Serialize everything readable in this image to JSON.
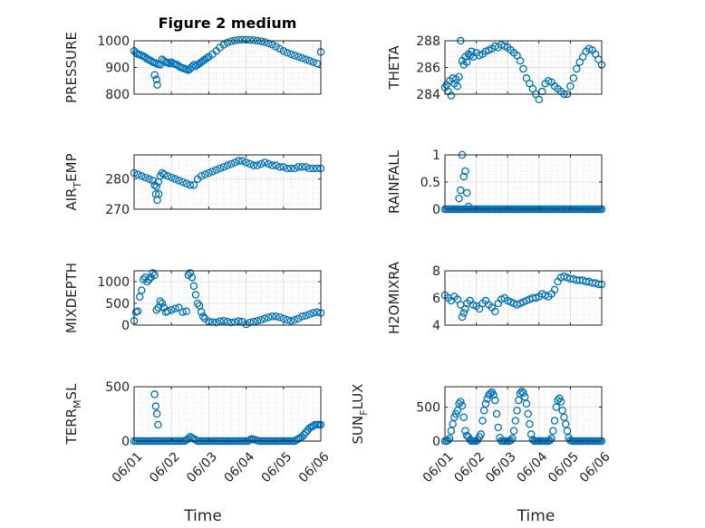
{
  "chart_data": [
    {
      "type": "scatter",
      "title": "Figure 2 medium",
      "ylabel": "PRESSURE",
      "xlabel": "",
      "ylim": [
        800,
        1000
      ],
      "yticks": [
        800,
        900,
        1000
      ],
      "xlim": [
        0,
        5
      ],
      "xticks": [
        0,
        1,
        2,
        3,
        4,
        5
      ],
      "xticklabels": [
        "06/01",
        "06/02",
        "06/03",
        "06/04",
        "06/05",
        "06/06"
      ],
      "show_xticklabels": false,
      "x": [
        0.0,
        0.05,
        0.1,
        0.15,
        0.2,
        0.25,
        0.3,
        0.35,
        0.4,
        0.45,
        0.5,
        0.55,
        0.6,
        0.65,
        0.7,
        0.75,
        0.8,
        0.85,
        0.9,
        0.95,
        1.0,
        1.05,
        1.1,
        1.15,
        1.2,
        1.25,
        1.3,
        1.35,
        1.4,
        1.45,
        1.5,
        1.55,
        1.6,
        1.65,
        1.7,
        1.75,
        1.8,
        1.85,
        1.9,
        1.95,
        2.0,
        2.1,
        2.2,
        2.3,
        2.4,
        2.5,
        2.6,
        2.7,
        2.8,
        2.9,
        3.0,
        3.1,
        3.2,
        3.3,
        3.4,
        3.5,
        3.6,
        3.7,
        3.8,
        3.9,
        4.0,
        4.1,
        4.2,
        4.3,
        4.4,
        4.5,
        4.6,
        4.7,
        4.8,
        4.9,
        5.0,
        0.55,
        0.6,
        0.62
      ],
      "y": [
        962,
        955,
        950,
        948,
        945,
        942,
        938,
        932,
        928,
        925,
        920,
        918,
        915,
        912,
        910,
        930,
        925,
        920,
        918,
        915,
        920,
        915,
        912,
        910,
        905,
        900,
        898,
        895,
        893,
        890,
        895,
        902,
        910,
        905,
        910,
        915,
        920,
        925,
        930,
        935,
        940,
        950,
        962,
        975,
        985,
        993,
        998,
        1001,
        1003,
        1004,
        1004,
        1003,
        1002,
        1000,
        998,
        995,
        990,
        985,
        978,
        970,
        962,
        955,
        950,
        945,
        940,
        935,
        930,
        925,
        920,
        915,
        958,
        872,
        855,
        835
      ]
    },
    {
      "type": "scatter",
      "ylabel": "THETA",
      "ylim": [
        284,
        288
      ],
      "yticks": [
        284,
        286,
        288
      ],
      "xlim": [
        0,
        5
      ],
      "show_xticklabels": false,
      "x": [
        0.0,
        0.05,
        0.1,
        0.15,
        0.2,
        0.25,
        0.3,
        0.35,
        0.4,
        0.45,
        0.5,
        0.55,
        0.6,
        0.65,
        0.7,
        0.75,
        0.8,
        0.85,
        0.9,
        1.0,
        1.1,
        1.2,
        1.3,
        1.4,
        1.5,
        1.6,
        1.7,
        1.8,
        1.9,
        2.0,
        2.1,
        2.2,
        2.3,
        2.4,
        2.5,
        2.6,
        2.7,
        2.8,
        2.9,
        3.0,
        3.1,
        3.2,
        3.3,
        3.4,
        3.5,
        3.6,
        3.7,
        3.8,
        3.9,
        4.0,
        4.1,
        4.2,
        4.3,
        4.4,
        4.5,
        4.6,
        4.7,
        4.8,
        4.9,
        5.0
      ],
      "y": [
        284.5,
        284.7,
        284.2,
        285.0,
        283.9,
        285.2,
        284.8,
        285.1,
        284.6,
        285.3,
        288.0,
        286.5,
        286.2,
        286.8,
        286.4,
        287.0,
        286.9,
        287.2,
        286.8,
        287.1,
        286.9,
        287.0,
        287.2,
        287.3,
        287.4,
        287.6,
        287.5,
        287.7,
        287.6,
        287.5,
        287.3,
        287.1,
        286.9,
        286.5,
        285.9,
        285.2,
        284.8,
        284.4,
        284.0,
        283.6,
        284.2,
        284.8,
        285.0,
        284.9,
        284.6,
        284.4,
        284.2,
        284.0,
        284.0,
        284.6,
        285.2,
        285.9,
        286.4,
        286.8,
        287.2,
        287.4,
        287.3,
        287.0,
        286.6,
        286.2
      ]
    },
    {
      "type": "scatter",
      "ylabel": "AIR_TEMP",
      "ylabel_main": "AIR",
      "ylabel_sub": "T",
      "ylabel_rest": "EMP",
      "ylim": [
        270,
        288
      ],
      "yticks": [
        270,
        280
      ],
      "xlim": [
        0,
        5
      ],
      "show_xticklabels": false,
      "x": [
        0.0,
        0.1,
        0.2,
        0.3,
        0.4,
        0.5,
        0.55,
        0.6,
        0.65,
        0.7,
        0.75,
        0.8,
        0.9,
        1.0,
        1.1,
        1.2,
        1.3,
        1.4,
        1.5,
        1.6,
        1.7,
        1.8,
        1.9,
        2.0,
        2.1,
        2.2,
        2.3,
        2.4,
        2.5,
        2.6,
        2.7,
        2.8,
        2.9,
        3.0,
        3.1,
        3.2,
        3.3,
        3.4,
        3.5,
        3.6,
        3.7,
        3.8,
        3.9,
        4.0,
        4.1,
        4.2,
        4.3,
        4.4,
        4.5,
        4.6,
        4.7,
        4.8,
        4.9,
        5.0,
        0.58,
        0.62,
        0.66
      ],
      "y": [
        282,
        281.5,
        281,
        280.5,
        280,
        279.5,
        278,
        277.5,
        279,
        281,
        282,
        281.5,
        281,
        280.5,
        280,
        279.5,
        279,
        278.5,
        278,
        278,
        280,
        281,
        281.5,
        282,
        282.5,
        283,
        283.5,
        284,
        284.5,
        285,
        285.5,
        286,
        286,
        285.5,
        285,
        284.5,
        284.5,
        285,
        285.5,
        285,
        284.5,
        284.5,
        284,
        284,
        283.5,
        283.5,
        283.5,
        284,
        284,
        284,
        283.5,
        283.5,
        283.5,
        283.5,
        275,
        273,
        275
      ]
    },
    {
      "type": "scatter",
      "ylabel": "RAINFALL",
      "ylim": [
        0,
        1
      ],
      "yticks": [
        0,
        0.5,
        1
      ],
      "xlim": [
        0,
        5
      ],
      "show_xticklabels": false,
      "x": [
        0.0,
        0.05,
        0.1,
        0.15,
        0.2,
        0.25,
        0.3,
        0.35,
        0.4,
        0.45,
        0.5,
        0.55,
        0.6,
        0.65,
        0.7,
        0.75,
        0.8,
        0.85,
        0.9,
        0.95,
        1.0,
        1.05,
        1.1,
        1.15,
        1.2,
        1.25,
        1.3,
        1.35,
        1.4,
        1.45,
        1.5,
        1.55,
        1.6,
        1.65,
        1.7,
        1.75,
        1.8,
        1.85,
        1.9,
        1.95,
        2.0,
        2.05,
        2.1,
        2.15,
        2.2,
        2.25,
        2.3,
        2.35,
        2.4,
        2.45,
        2.5,
        2.55,
        2.6,
        2.65,
        2.7,
        2.75,
        2.8,
        2.85,
        2.9,
        2.95,
        3.0,
        3.05,
        3.1,
        3.15,
        3.2,
        3.25,
        3.3,
        3.35,
        3.4,
        3.45,
        3.5,
        3.55,
        3.6,
        3.65,
        3.7,
        3.75,
        3.8,
        3.85,
        3.9,
        3.95,
        4.0,
        4.05,
        4.1,
        4.15,
        4.2,
        4.25,
        4.3,
        4.35,
        4.4,
        4.45,
        4.5,
        4.55,
        4.6,
        4.65,
        4.7,
        4.75,
        4.8,
        4.85,
        4.9,
        4.95,
        5.0,
        0.45,
        0.5,
        0.55,
        0.6,
        0.65,
        0.7,
        0.75
      ],
      "y": [
        0,
        0,
        0,
        0,
        0,
        0,
        0,
        0,
        0,
        0,
        0,
        0,
        0,
        0,
        0,
        0,
        0,
        0,
        0,
        0,
        0,
        0,
        0,
        0,
        0,
        0,
        0,
        0,
        0,
        0,
        0,
        0,
        0,
        0,
        0,
        0,
        0,
        0,
        0,
        0,
        0,
        0,
        0,
        0,
        0,
        0,
        0,
        0,
        0,
        0,
        0,
        0,
        0,
        0,
        0,
        0,
        0,
        0,
        0,
        0,
        0,
        0,
        0,
        0,
        0,
        0,
        0,
        0,
        0,
        0,
        0,
        0,
        0,
        0,
        0,
        0,
        0,
        0,
        0,
        0,
        0,
        0,
        0,
        0,
        0,
        0,
        0,
        0,
        0,
        0,
        0,
        0,
        0,
        0,
        0,
        0,
        0,
        0,
        0,
        0,
        0,
        0.2,
        0.35,
        1.0,
        0.6,
        0.7,
        0.3,
        0.05
      ]
    },
    {
      "type": "scatter",
      "ylabel": "MIXDEPTH",
      "ylim": [
        0,
        1250
      ],
      "yticks": [
        0,
        500,
        1000
      ],
      "xlim": [
        0,
        5
      ],
      "show_xticklabels": false,
      "x": [
        0.0,
        0.05,
        0.1,
        0.15,
        0.2,
        0.25,
        0.3,
        0.35,
        0.4,
        0.45,
        0.5,
        0.55,
        0.6,
        0.65,
        0.7,
        0.75,
        0.8,
        0.85,
        0.9,
        1.0,
        1.1,
        1.2,
        1.3,
        1.4,
        1.45,
        1.5,
        1.55,
        1.6,
        1.65,
        1.7,
        1.75,
        1.8,
        1.85,
        1.9,
        2.0,
        2.1,
        2.2,
        2.3,
        2.4,
        2.5,
        2.6,
        2.7,
        2.8,
        2.9,
        3.0,
        3.1,
        3.2,
        3.3,
        3.4,
        3.5,
        3.6,
        3.7,
        3.8,
        3.9,
        4.0,
        4.1,
        4.2,
        4.3,
        4.4,
        4.5,
        4.6,
        4.7,
        4.8,
        4.9,
        5.0
      ],
      "y": [
        100,
        300,
        320,
        650,
        800,
        1050,
        1100,
        1000,
        1050,
        1100,
        1200,
        1150,
        350,
        400,
        550,
        500,
        400,
        300,
        320,
        350,
        380,
        400,
        300,
        320,
        1150,
        1200,
        1100,
        900,
        700,
        500,
        450,
        300,
        200,
        150,
        80,
        70,
        60,
        90,
        100,
        80,
        60,
        70,
        90,
        80,
        20,
        60,
        80,
        100,
        120,
        150,
        180,
        200,
        200,
        180,
        150,
        120,
        100,
        120,
        150,
        200,
        220,
        250,
        280,
        300,
        280
      ]
    },
    {
      "type": "scatter",
      "ylabel": "H2OMIXRA",
      "ylim": [
        4,
        8
      ],
      "yticks": [
        4,
        6,
        8
      ],
      "xlim": [
        0,
        5
      ],
      "show_xticklabels": false,
      "x": [
        0.0,
        0.1,
        0.2,
        0.3,
        0.4,
        0.5,
        0.55,
        0.6,
        0.65,
        0.7,
        0.8,
        0.9,
        1.0,
        1.1,
        1.2,
        1.3,
        1.4,
        1.5,
        1.6,
        1.7,
        1.8,
        1.9,
        2.0,
        2.1,
        2.2,
        2.3,
        2.4,
        2.5,
        2.6,
        2.7,
        2.8,
        2.9,
        3.0,
        3.1,
        3.2,
        3.3,
        3.4,
        3.5,
        3.6,
        3.7,
        3.8,
        3.9,
        4.0,
        4.1,
        4.2,
        4.3,
        4.4,
        4.5,
        4.6,
        4.7,
        4.8,
        4.9,
        5.0
      ],
      "y": [
        6.2,
        6.0,
        5.8,
        6.1,
        5.9,
        5.5,
        4.6,
        4.9,
        5.2,
        5.6,
        5.8,
        5.5,
        5.4,
        5.2,
        5.6,
        5.8,
        5.5,
        5.3,
        5.0,
        5.6,
        5.9,
        6.0,
        5.8,
        5.7,
        5.6,
        5.5,
        5.6,
        5.7,
        5.8,
        5.9,
        6.0,
        6.0,
        6.1,
        6.3,
        6.2,
        6.1,
        6.3,
        6.6,
        7.2,
        7.5,
        7.6,
        7.5,
        7.4,
        7.4,
        7.3,
        7.3,
        7.3,
        7.2,
        7.2,
        7.1,
        7.1,
        7.0,
        7.0
      ]
    },
    {
      "type": "scatter",
      "ylabel": "TERR_MSL",
      "ylabel_main": "TERR",
      "ylabel_sub": "M",
      "ylabel_rest": "SL",
      "xlabel": "Time",
      "ylim": [
        0,
        500
      ],
      "yticks": [
        0,
        500
      ],
      "xlim": [
        0,
        5
      ],
      "xticks": [
        0,
        1,
        2,
        3,
        4,
        5
      ],
      "xticklabels": [
        "06/01",
        "06/02",
        "06/03",
        "06/04",
        "06/05",
        "06/06"
      ],
      "show_xticklabels": true,
      "x": [
        0.0,
        0.05,
        0.1,
        0.15,
        0.2,
        0.25,
        0.3,
        0.35,
        0.4,
        0.45,
        0.5,
        0.55,
        0.6,
        0.65,
        0.7,
        0.75,
        0.8,
        0.85,
        0.9,
        0.95,
        1.0,
        1.05,
        1.1,
        1.15,
        1.2,
        1.25,
        1.3,
        1.35,
        1.4,
        1.45,
        1.5,
        1.55,
        1.6,
        1.65,
        1.7,
        1.75,
        1.8,
        1.85,
        1.9,
        1.95,
        2.0,
        2.05,
        2.1,
        2.15,
        2.2,
        2.25,
        2.3,
        2.35,
        2.4,
        2.45,
        2.5,
        2.55,
        2.6,
        2.65,
        2.7,
        2.75,
        2.8,
        2.85,
        2.9,
        2.95,
        3.0,
        3.05,
        3.1,
        3.15,
        3.2,
        3.25,
        3.3,
        3.35,
        3.4,
        3.45,
        3.5,
        3.55,
        3.6,
        3.65,
        3.7,
        3.75,
        3.8,
        3.85,
        3.9,
        3.95,
        4.0,
        4.05,
        4.1,
        4.15,
        4.2,
        4.25,
        4.3,
        4.35,
        4.4,
        4.45,
        4.5,
        4.55,
        4.6,
        4.65,
        4.7,
        4.75,
        4.8,
        4.85,
        4.9,
        4.95,
        5.0,
        0.55,
        0.58,
        0.61,
        0.64
      ],
      "y": [
        0,
        0,
        0,
        0,
        0,
        0,
        0,
        0,
        0,
        0,
        0,
        0,
        0,
        0,
        0,
        0,
        0,
        0,
        0,
        0,
        0,
        0,
        0,
        0,
        0,
        0,
        0,
        0,
        10,
        20,
        40,
        30,
        20,
        10,
        0,
        0,
        0,
        0,
        0,
        0,
        0,
        0,
        0,
        0,
        0,
        0,
        0,
        0,
        0,
        0,
        0,
        0,
        0,
        0,
        0,
        0,
        0,
        0,
        0,
        0,
        0,
        0,
        10,
        20,
        15,
        10,
        5,
        0,
        0,
        0,
        0,
        0,
        0,
        0,
        0,
        0,
        0,
        0,
        0,
        0,
        0,
        0,
        0,
        0,
        0,
        0,
        0,
        10,
        20,
        30,
        40,
        60,
        80,
        100,
        120,
        130,
        140,
        150,
        150,
        150,
        150,
        430,
        320,
        250,
        150
      ]
    },
    {
      "type": "scatter",
      "ylabel": "SUN_FLUX",
      "ylabel_main": "SUN",
      "ylabel_sub": "F",
      "ylabel_rest": "LUX",
      "xlabel": "Time",
      "ylim": [
        0,
        800
      ],
      "yticks": [
        0,
        500
      ],
      "xlim": [
        0,
        5
      ],
      "xticks": [
        0,
        1,
        2,
        3,
        4,
        5
      ],
      "xticklabels": [
        "06/01",
        "06/02",
        "06/03",
        "06/04",
        "06/05",
        "06/06"
      ],
      "show_xticklabels": true,
      "x": [
        0.0,
        0.05,
        0.1,
        0.15,
        0.2,
        0.25,
        0.3,
        0.35,
        0.4,
        0.45,
        0.5,
        0.55,
        0.6,
        0.65,
        0.7,
        0.75,
        0.8,
        0.85,
        0.9,
        0.95,
        1.0,
        1.05,
        1.1,
        1.15,
        1.2,
        1.25,
        1.3,
        1.35,
        1.4,
        1.45,
        1.5,
        1.55,
        1.6,
        1.65,
        1.7,
        1.75,
        1.8,
        1.85,
        1.9,
        1.95,
        2.0,
        2.05,
        2.1,
        2.15,
        2.2,
        2.25,
        2.3,
        2.35,
        2.4,
        2.45,
        2.5,
        2.55,
        2.6,
        2.65,
        2.7,
        2.75,
        2.8,
        2.85,
        2.9,
        2.95,
        3.0,
        3.05,
        3.1,
        3.15,
        3.2,
        3.25,
        3.3,
        3.35,
        3.4,
        3.45,
        3.5,
        3.55,
        3.6,
        3.65,
        3.7,
        3.75,
        3.8,
        3.85,
        3.9,
        3.95,
        4.0,
        4.05,
        4.1,
        4.15,
        4.2,
        4.25,
        4.3,
        4.35,
        4.4,
        4.45,
        4.5,
        4.55,
        4.6,
        4.65,
        4.7,
        4.75,
        4.8,
        4.85,
        4.9,
        4.95,
        5.0
      ],
      "y": [
        0,
        0,
        10,
        40,
        150,
        250,
        350,
        400,
        450,
        550,
        580,
        520,
        350,
        150,
        80,
        60,
        20,
        0,
        0,
        0,
        0,
        20,
        60,
        100,
        300,
        450,
        550,
        620,
        680,
        700,
        720,
        680,
        600,
        400,
        200,
        50,
        0,
        0,
        0,
        0,
        0,
        0,
        10,
        40,
        150,
        300,
        450,
        600,
        700,
        730,
        710,
        650,
        550,
        400,
        250,
        100,
        20,
        0,
        0,
        0,
        0,
        0,
        0,
        0,
        0,
        0,
        0,
        10,
        40,
        150,
        300,
        500,
        600,
        630,
        580,
        450,
        350,
        250,
        150,
        50,
        10,
        0,
        0,
        0,
        0,
        0,
        0,
        0,
        0,
        0,
        0,
        0,
        0,
        0,
        0,
        0,
        0,
        0,
        0,
        0,
        0
      ]
    }
  ]
}
